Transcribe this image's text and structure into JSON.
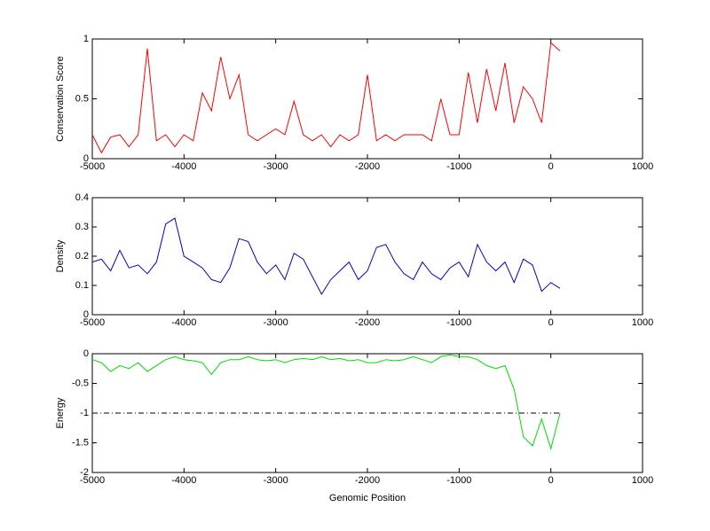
{
  "chart_data": [
    {
      "type": "line",
      "ylabel": "Conservation Score",
      "x": [
        -5000,
        -4900,
        -4800,
        -4700,
        -4600,
        -4500,
        -4400,
        -4300,
        -4200,
        -4100,
        -4000,
        -3900,
        -3800,
        -3700,
        -3600,
        -3500,
        -3400,
        -3300,
        -3200,
        -3100,
        -3000,
        -2900,
        -2800,
        -2700,
        -2600,
        -2500,
        -2400,
        -2300,
        -2200,
        -2100,
        -2000,
        -1900,
        -1800,
        -1700,
        -1600,
        -1500,
        -1400,
        -1300,
        -1200,
        -1100,
        -1000,
        -900,
        -800,
        -700,
        -600,
        -500,
        -400,
        -300,
        -200,
        -100,
        0,
        100
      ],
      "series": [
        {
          "color": "#ff0000",
          "values": [
            0.2,
            0.05,
            0.18,
            0.2,
            0.1,
            0.2,
            0.92,
            0.15,
            0.2,
            0.1,
            0.2,
            0.15,
            0.55,
            0.4,
            0.85,
            0.5,
            0.7,
            0.2,
            0.15,
            0.2,
            0.25,
            0.2,
            0.48,
            0.2,
            0.15,
            0.2,
            0.1,
            0.2,
            0.15,
            0.2,
            0.7,
            0.15,
            0.2,
            0.15,
            0.2,
            0.2,
            0.2,
            0.15,
            0.5,
            0.2,
            0.2,
            0.72,
            0.3,
            0.75,
            0.4,
            0.8,
            0.3,
            0.6,
            0.5,
            0.3,
            0.97,
            0.9
          ]
        }
      ],
      "xlim": [
        -5000,
        1000
      ],
      "xticks": [
        -5000,
        -4000,
        -3000,
        -2000,
        -1000,
        0,
        1000
      ],
      "ylim": [
        0,
        1
      ],
      "yticks": [
        0,
        0.5,
        1
      ]
    },
    {
      "type": "line",
      "ylabel": "Density",
      "x": [
        -5000,
        -4900,
        -4800,
        -4700,
        -4600,
        -4500,
        -4400,
        -4300,
        -4200,
        -4100,
        -4000,
        -3900,
        -3800,
        -3700,
        -3600,
        -3500,
        -3400,
        -3300,
        -3200,
        -3100,
        -3000,
        -2900,
        -2800,
        -2700,
        -2600,
        -2500,
        -2400,
        -2300,
        -2200,
        -2100,
        -2000,
        -1900,
        -1800,
        -1700,
        -1600,
        -1500,
        -1400,
        -1300,
        -1200,
        -1100,
        -1000,
        -900,
        -800,
        -700,
        -600,
        -500,
        -400,
        -300,
        -200,
        -100,
        0,
        100
      ],
      "series": [
        {
          "color": "#0000cc",
          "values": [
            0.18,
            0.19,
            0.15,
            0.22,
            0.16,
            0.17,
            0.14,
            0.18,
            0.31,
            0.33,
            0.2,
            0.18,
            0.16,
            0.12,
            0.11,
            0.16,
            0.26,
            0.25,
            0.18,
            0.14,
            0.17,
            0.12,
            0.21,
            0.19,
            0.13,
            0.07,
            0.12,
            0.15,
            0.18,
            0.12,
            0.15,
            0.23,
            0.24,
            0.18,
            0.14,
            0.12,
            0.18,
            0.14,
            0.12,
            0.16,
            0.18,
            0.13,
            0.24,
            0.18,
            0.15,
            0.18,
            0.11,
            0.19,
            0.17,
            0.08,
            0.11,
            0.09
          ]
        }
      ],
      "xlim": [
        -5000,
        1000
      ],
      "xticks": [
        -5000,
        -4000,
        -3000,
        -2000,
        -1000,
        0,
        1000
      ],
      "ylim": [
        0,
        0.4
      ],
      "yticks": [
        0,
        0.1,
        0.2,
        0.3,
        0.4
      ]
    },
    {
      "type": "line",
      "ylabel": "Energy",
      "xlabel": "Genomic Position",
      "x": [
        -5000,
        -4900,
        -4800,
        -4700,
        -4600,
        -4500,
        -4400,
        -4300,
        -4200,
        -4100,
        -4000,
        -3900,
        -3800,
        -3700,
        -3600,
        -3500,
        -3400,
        -3300,
        -3200,
        -3100,
        -3000,
        -2900,
        -2800,
        -2700,
        -2600,
        -2500,
        -2400,
        -2300,
        -2200,
        -2100,
        -2000,
        -1900,
        -1800,
        -1700,
        -1600,
        -1500,
        -1400,
        -1300,
        -1200,
        -1100,
        -1000,
        -900,
        -800,
        -700,
        -600,
        -500,
        -400,
        -300,
        -200,
        -100,
        0,
        100
      ],
      "series": [
        {
          "color": "#00dd00",
          "values": [
            -0.1,
            -0.15,
            -0.3,
            -0.2,
            -0.25,
            -0.15,
            -0.3,
            -0.2,
            -0.1,
            -0.05,
            -0.1,
            -0.12,
            -0.15,
            -0.35,
            -0.15,
            -0.1,
            -0.1,
            -0.05,
            -0.1,
            -0.12,
            -0.1,
            -0.15,
            -0.1,
            -0.08,
            -0.1,
            -0.05,
            -0.1,
            -0.08,
            -0.12,
            -0.1,
            -0.15,
            -0.15,
            -0.1,
            -0.12,
            -0.1,
            -0.05,
            -0.1,
            -0.15,
            -0.05,
            -0.02,
            -0.05,
            -0.05,
            -0.1,
            -0.2,
            -0.25,
            -0.2,
            -0.6,
            -1.4,
            -1.55,
            -1.1,
            -1.6,
            -1.0
          ]
        }
      ],
      "ref_line": {
        "y": -1,
        "x": [
          -5000,
          100
        ],
        "color": "#000000",
        "style": "dashdot"
      },
      "xlim": [
        -5000,
        1000
      ],
      "xticks": [
        -5000,
        -4000,
        -3000,
        -2000,
        -1000,
        0,
        1000
      ],
      "ylim": [
        -2,
        0
      ],
      "yticks": [
        -2,
        -1.5,
        -1,
        -0.5,
        0
      ]
    }
  ]
}
